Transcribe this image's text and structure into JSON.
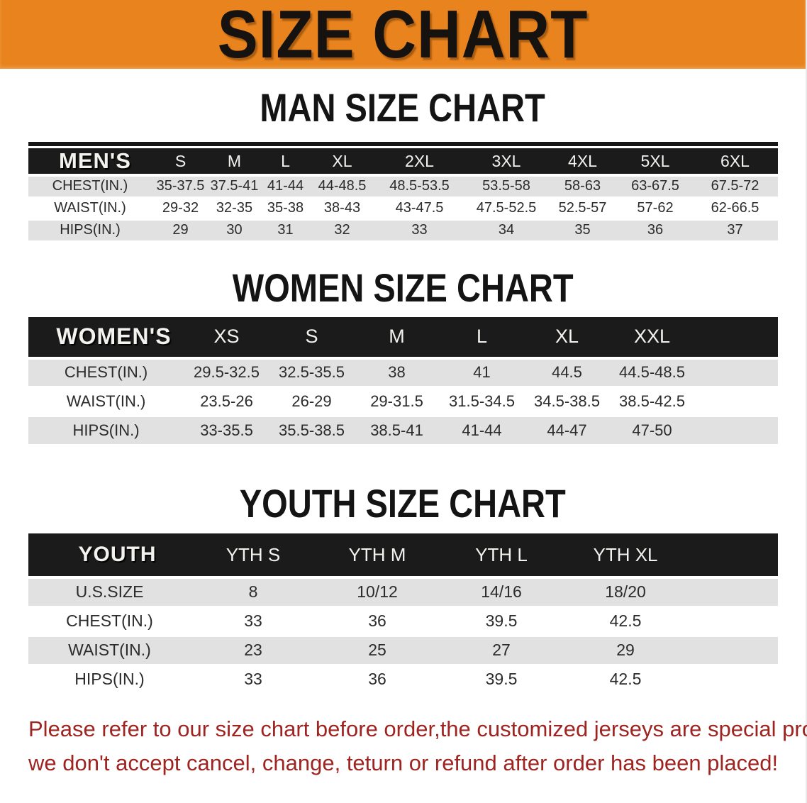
{
  "banner": {
    "title": "SIZE CHART",
    "bg_color": "#E8831E"
  },
  "sections": [
    {
      "id": "men",
      "heading": "MAN SIZE CHART",
      "table": {
        "header_label": "MEN'S",
        "columns": [
          "S",
          "M",
          "L",
          "XL",
          "2XL",
          "3XL",
          "4XL",
          "5XL",
          "6XL"
        ],
        "rows": [
          {
            "label": "CHEST(IN.)",
            "values": [
              "35-37.5",
              "37.5-41",
              "41-44",
              "44-48.5",
              "48.5-53.5",
              "53.5-58",
              "58-63",
              "63-67.5",
              "67.5-72"
            ]
          },
          {
            "label": "WAIST(IN.)",
            "values": [
              "29-32",
              "32-35",
              "35-38",
              "38-43",
              "43-47.5",
              "47.5-52.5",
              "52.5-57",
              "57-62",
              "62-66.5"
            ]
          },
          {
            "label": "HIPS(IN.)",
            "values": [
              "29",
              "30",
              "31",
              "32",
              "33",
              "34",
              "35",
              "36",
              "37"
            ]
          }
        ]
      }
    },
    {
      "id": "women",
      "heading": "WOMEN SIZE CHART",
      "table": {
        "header_label": "WOMEN'S",
        "columns": [
          "XS",
          "S",
          "M",
          "L",
          "XL",
          "XXL"
        ],
        "rows": [
          {
            "label": "CHEST(IN.)",
            "values": [
              "29.5-32.5",
              "32.5-35.5",
              "38",
              "41",
              "44.5",
              "44.5-48.5"
            ]
          },
          {
            "label": "WAIST(IN.)",
            "values": [
              "23.5-26",
              "26-29",
              "29-31.5",
              "31.5-34.5",
              "34.5-38.5",
              "38.5-42.5"
            ]
          },
          {
            "label": "HIPS(IN.)",
            "values": [
              "33-35.5",
              "35.5-38.5",
              "38.5-41",
              "41-44",
              "44-47",
              "47-50"
            ]
          }
        ]
      }
    },
    {
      "id": "youth",
      "heading": "YOUTH SIZE CHART",
      "table": {
        "header_label": "YOUTH",
        "columns": [
          "YTH S",
          "YTH M",
          "YTH L",
          "YTH XL"
        ],
        "rows": [
          {
            "label": "U.S.SIZE",
            "values": [
              "8",
              "10/12",
              "14/16",
              "18/20"
            ]
          },
          {
            "label": "CHEST(IN.)",
            "values": [
              "33",
              "36",
              "39.5",
              "42.5"
            ]
          },
          {
            "label": "WAIST(IN.)",
            "values": [
              "23",
              "25",
              "27",
              "29"
            ]
          },
          {
            "label": "HIPS(IN.)",
            "values": [
              "33",
              "36",
              "39.5",
              "42.5"
            ]
          }
        ]
      }
    }
  ],
  "footer_note": {
    "line1": "Please refer to our size chart before order,the customized jerseys are special products,",
    "line2": "we don't accept cancel, change, teturn or refund after order has been placed!",
    "color": "#9e2421"
  }
}
